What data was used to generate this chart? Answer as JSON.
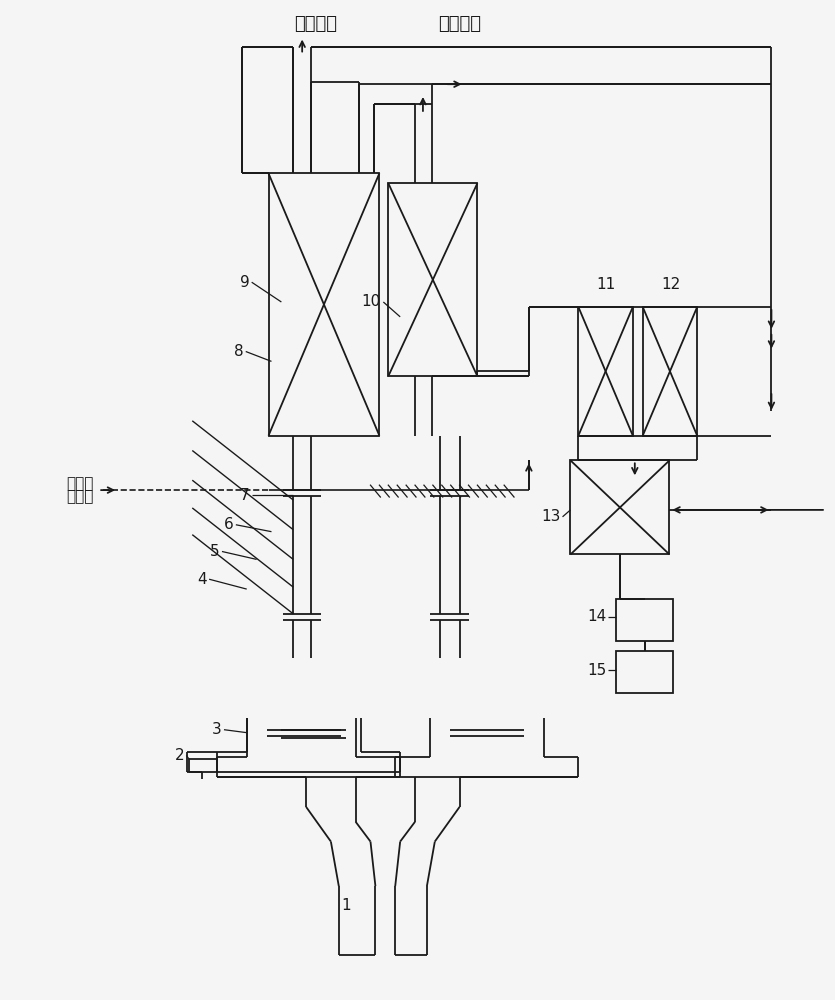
{
  "bg_color": "#f5f5f5",
  "line_color": "#1a1a1a",
  "labels": {
    "low_pressure": "低压透平",
    "high_pressure": "高压透平",
    "hp_exhaust_1": "高压透",
    "hp_exhaust_2": "平排气",
    "1": "1",
    "2": "2",
    "3": "3",
    "4": "4",
    "5": "5",
    "6": "6",
    "7": "7",
    "8": "8",
    "9": "9",
    "10": "10",
    "11": "11",
    "12": "12",
    "13": "13",
    "14": "14",
    "15": "15"
  },
  "figsize": [
    8.35,
    10.0
  ],
  "dpi": 100
}
